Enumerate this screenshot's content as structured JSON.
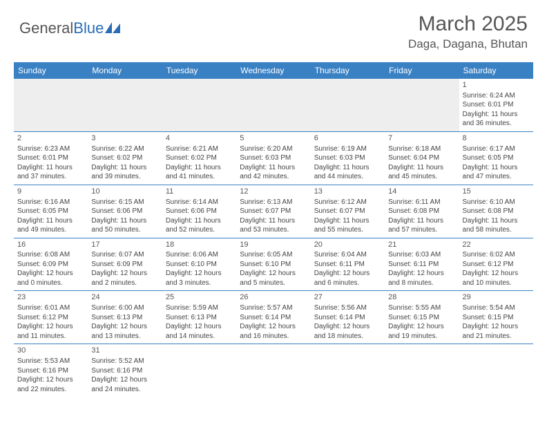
{
  "logo": {
    "text1": "General",
    "text2": "Blue"
  },
  "title": "March 2025",
  "location": "Daga, Dagana, Bhutan",
  "colors": {
    "header_bg": "#3a81c4",
    "header_text": "#ffffff",
    "row_border": "#3a81c4",
    "empty_bg": "#eeeeee",
    "body_text": "#444444",
    "title_text": "#555555"
  },
  "day_headers": [
    "Sunday",
    "Monday",
    "Tuesday",
    "Wednesday",
    "Thursday",
    "Friday",
    "Saturday"
  ],
  "weeks": [
    [
      null,
      null,
      null,
      null,
      null,
      null,
      {
        "n": "1",
        "sr": "Sunrise: 6:24 AM",
        "ss": "Sunset: 6:01 PM",
        "d1": "Daylight: 11 hours",
        "d2": "and 36 minutes."
      }
    ],
    [
      {
        "n": "2",
        "sr": "Sunrise: 6:23 AM",
        "ss": "Sunset: 6:01 PM",
        "d1": "Daylight: 11 hours",
        "d2": "and 37 minutes."
      },
      {
        "n": "3",
        "sr": "Sunrise: 6:22 AM",
        "ss": "Sunset: 6:02 PM",
        "d1": "Daylight: 11 hours",
        "d2": "and 39 minutes."
      },
      {
        "n": "4",
        "sr": "Sunrise: 6:21 AM",
        "ss": "Sunset: 6:02 PM",
        "d1": "Daylight: 11 hours",
        "d2": "and 41 minutes."
      },
      {
        "n": "5",
        "sr": "Sunrise: 6:20 AM",
        "ss": "Sunset: 6:03 PM",
        "d1": "Daylight: 11 hours",
        "d2": "and 42 minutes."
      },
      {
        "n": "6",
        "sr": "Sunrise: 6:19 AM",
        "ss": "Sunset: 6:03 PM",
        "d1": "Daylight: 11 hours",
        "d2": "and 44 minutes."
      },
      {
        "n": "7",
        "sr": "Sunrise: 6:18 AM",
        "ss": "Sunset: 6:04 PM",
        "d1": "Daylight: 11 hours",
        "d2": "and 45 minutes."
      },
      {
        "n": "8",
        "sr": "Sunrise: 6:17 AM",
        "ss": "Sunset: 6:05 PM",
        "d1": "Daylight: 11 hours",
        "d2": "and 47 minutes."
      }
    ],
    [
      {
        "n": "9",
        "sr": "Sunrise: 6:16 AM",
        "ss": "Sunset: 6:05 PM",
        "d1": "Daylight: 11 hours",
        "d2": "and 49 minutes."
      },
      {
        "n": "10",
        "sr": "Sunrise: 6:15 AM",
        "ss": "Sunset: 6:06 PM",
        "d1": "Daylight: 11 hours",
        "d2": "and 50 minutes."
      },
      {
        "n": "11",
        "sr": "Sunrise: 6:14 AM",
        "ss": "Sunset: 6:06 PM",
        "d1": "Daylight: 11 hours",
        "d2": "and 52 minutes."
      },
      {
        "n": "12",
        "sr": "Sunrise: 6:13 AM",
        "ss": "Sunset: 6:07 PM",
        "d1": "Daylight: 11 hours",
        "d2": "and 53 minutes."
      },
      {
        "n": "13",
        "sr": "Sunrise: 6:12 AM",
        "ss": "Sunset: 6:07 PM",
        "d1": "Daylight: 11 hours",
        "d2": "and 55 minutes."
      },
      {
        "n": "14",
        "sr": "Sunrise: 6:11 AM",
        "ss": "Sunset: 6:08 PM",
        "d1": "Daylight: 11 hours",
        "d2": "and 57 minutes."
      },
      {
        "n": "15",
        "sr": "Sunrise: 6:10 AM",
        "ss": "Sunset: 6:08 PM",
        "d1": "Daylight: 11 hours",
        "d2": "and 58 minutes."
      }
    ],
    [
      {
        "n": "16",
        "sr": "Sunrise: 6:08 AM",
        "ss": "Sunset: 6:09 PM",
        "d1": "Daylight: 12 hours",
        "d2": "and 0 minutes."
      },
      {
        "n": "17",
        "sr": "Sunrise: 6:07 AM",
        "ss": "Sunset: 6:09 PM",
        "d1": "Daylight: 12 hours",
        "d2": "and 2 minutes."
      },
      {
        "n": "18",
        "sr": "Sunrise: 6:06 AM",
        "ss": "Sunset: 6:10 PM",
        "d1": "Daylight: 12 hours",
        "d2": "and 3 minutes."
      },
      {
        "n": "19",
        "sr": "Sunrise: 6:05 AM",
        "ss": "Sunset: 6:10 PM",
        "d1": "Daylight: 12 hours",
        "d2": "and 5 minutes."
      },
      {
        "n": "20",
        "sr": "Sunrise: 6:04 AM",
        "ss": "Sunset: 6:11 PM",
        "d1": "Daylight: 12 hours",
        "d2": "and 6 minutes."
      },
      {
        "n": "21",
        "sr": "Sunrise: 6:03 AM",
        "ss": "Sunset: 6:11 PM",
        "d1": "Daylight: 12 hours",
        "d2": "and 8 minutes."
      },
      {
        "n": "22",
        "sr": "Sunrise: 6:02 AM",
        "ss": "Sunset: 6:12 PM",
        "d1": "Daylight: 12 hours",
        "d2": "and 10 minutes."
      }
    ],
    [
      {
        "n": "23",
        "sr": "Sunrise: 6:01 AM",
        "ss": "Sunset: 6:12 PM",
        "d1": "Daylight: 12 hours",
        "d2": "and 11 minutes."
      },
      {
        "n": "24",
        "sr": "Sunrise: 6:00 AM",
        "ss": "Sunset: 6:13 PM",
        "d1": "Daylight: 12 hours",
        "d2": "and 13 minutes."
      },
      {
        "n": "25",
        "sr": "Sunrise: 5:59 AM",
        "ss": "Sunset: 6:13 PM",
        "d1": "Daylight: 12 hours",
        "d2": "and 14 minutes."
      },
      {
        "n": "26",
        "sr": "Sunrise: 5:57 AM",
        "ss": "Sunset: 6:14 PM",
        "d1": "Daylight: 12 hours",
        "d2": "and 16 minutes."
      },
      {
        "n": "27",
        "sr": "Sunrise: 5:56 AM",
        "ss": "Sunset: 6:14 PM",
        "d1": "Daylight: 12 hours",
        "d2": "and 18 minutes."
      },
      {
        "n": "28",
        "sr": "Sunrise: 5:55 AM",
        "ss": "Sunset: 6:15 PM",
        "d1": "Daylight: 12 hours",
        "d2": "and 19 minutes."
      },
      {
        "n": "29",
        "sr": "Sunrise: 5:54 AM",
        "ss": "Sunset: 6:15 PM",
        "d1": "Daylight: 12 hours",
        "d2": "and 21 minutes."
      }
    ],
    [
      {
        "n": "30",
        "sr": "Sunrise: 5:53 AM",
        "ss": "Sunset: 6:16 PM",
        "d1": "Daylight: 12 hours",
        "d2": "and 22 minutes."
      },
      {
        "n": "31",
        "sr": "Sunrise: 5:52 AM",
        "ss": "Sunset: 6:16 PM",
        "d1": "Daylight: 12 hours",
        "d2": "and 24 minutes."
      },
      null,
      null,
      null,
      null,
      null
    ]
  ]
}
